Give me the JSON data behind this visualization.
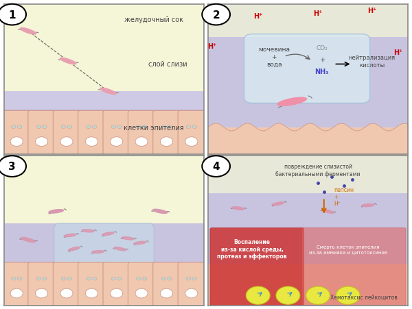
{
  "panel1": {
    "number": "1",
    "bg_top": "#f5f5d8",
    "bg_mucus": "#c8c4e0",
    "bg_epithelium": "#f0c8b0",
    "label_gastric": "желудочный сок",
    "label_mucus": "слой слизи",
    "label_epithelium": "клетки эпителия"
  },
  "panel2": {
    "number": "2",
    "bg_top": "#e8e8d8",
    "bg_mucus": "#c8c4e0",
    "bg_epithelium": "#f0c8b0",
    "h_plus_color": "#cc0000",
    "label_urea": "мочевина\n+\nвода",
    "label_co2": "CO₂",
    "label_nh3": "NH₃",
    "label_neutralize": "нейтрализация\nкислоты"
  },
  "panel3": {
    "number": "3",
    "bg_top": "#f5f5d8",
    "bg_mucus": "#c8c4e0",
    "bg_epithelium": "#f0c8b0"
  },
  "panel4": {
    "number": "4",
    "bg_top": "#e8e8d8",
    "bg_mucus": "#c8c4e0",
    "bg_epithelium": "#f0c8b0",
    "bg_inflamed": "#cc3333",
    "label_damage": "повреждение слизистой\nбактериальными ферментами",
    "label_pepsin": "пепсин\n+\nH⁺",
    "label_inflammation": "Воспаление\nиз-за кислой среды,\nпротеаз и эффекторов",
    "label_death": "Смерть клеток эпителия\nиз-за аммиака и цитотоксинов",
    "label_chemotaxis": "Хемотаксис лейкоцитов"
  },
  "border_color": "#888888",
  "figure_bg": "#ffffff"
}
